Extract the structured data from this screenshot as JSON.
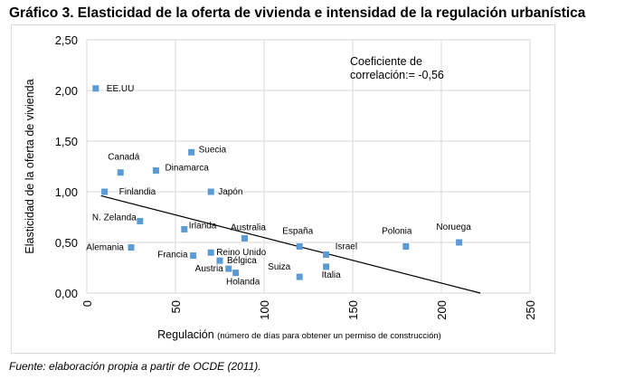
{
  "title": "Gráfico 3. Elasticidad de la oferta de vivienda e intensidad de la regulación urbanística",
  "source": "Fuente: elaboración propia a partir de OCDE (2011).",
  "chart_data": {
    "type": "scatter",
    "title": "Gráfico 3. Elasticidad de la oferta de vivienda e intensidad de la regulación urbanística",
    "xlabel": "Regulación",
    "xlabel_note": "(número de días para obtener un permiso de construcción)",
    "ylabel": "Elasticidad de la oferta de vivienda",
    "xlim": [
      0,
      250
    ],
    "ylim": [
      0,
      2.5
    ],
    "xticks": [
      "0",
      "50",
      "100",
      "150",
      "200",
      "250"
    ],
    "yticks": [
      "0,00",
      "0,50",
      "1,00",
      "1,50",
      "2,00",
      "2,50"
    ],
    "grid": true,
    "marker_color": "#5b9bd5",
    "annotation": [
      "Coeficiente de",
      "correlación:= -0,56"
    ],
    "trendline": {
      "x": [
        8,
        222
      ],
      "y": [
        0.96,
        0.0
      ]
    },
    "points": [
      {
        "label": "EE.UU",
        "x": 5,
        "y": 2.02
      },
      {
        "label": "Canadá",
        "x": 19,
        "y": 1.19
      },
      {
        "label": "Dinamarca",
        "x": 39,
        "y": 1.21
      },
      {
        "label": "Suecia",
        "x": 59,
        "y": 1.39
      },
      {
        "label": "Finlandia",
        "x": 10,
        "y": 1.0
      },
      {
        "label": "Japón",
        "x": 70,
        "y": 1.0
      },
      {
        "label": "N. Zelanda",
        "x": 30,
        "y": 0.71
      },
      {
        "label": "Irlanda",
        "x": 55,
        "y": 0.63
      },
      {
        "label": "Australia",
        "x": 89,
        "y": 0.54
      },
      {
        "label": "Alemania",
        "x": 25,
        "y": 0.45
      },
      {
        "label": "Francia",
        "x": 60,
        "y": 0.37
      },
      {
        "label": "Reino Unido",
        "x": 70,
        "y": 0.4
      },
      {
        "label": "Bélgica",
        "x": 75,
        "y": 0.32
      },
      {
        "label": "Austria",
        "x": 80,
        "y": 0.24
      },
      {
        "label": "Holanda",
        "x": 84,
        "y": 0.2
      },
      {
        "label": "España",
        "x": 120,
        "y": 0.46
      },
      {
        "label": "Israel",
        "x": 135,
        "y": 0.38
      },
      {
        "label": "Suiza",
        "x": 120,
        "y": 0.16
      },
      {
        "label": "Italia",
        "x": 135,
        "y": 0.26
      },
      {
        "label": "Polonia",
        "x": 180,
        "y": 0.46
      },
      {
        "label": "Noruega",
        "x": 210,
        "y": 0.5
      }
    ]
  }
}
